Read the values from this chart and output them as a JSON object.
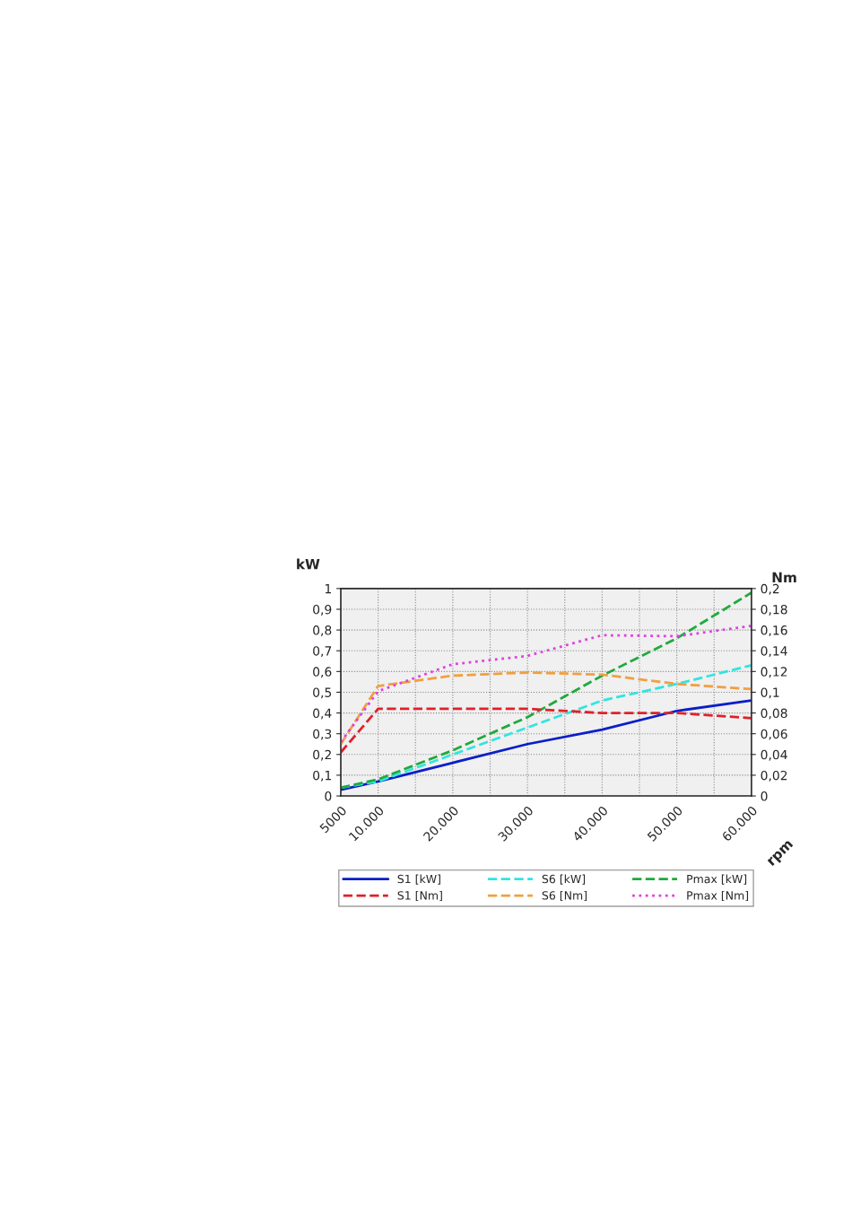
{
  "chart_data": {
    "type": "line",
    "xlabel": "rpm",
    "ylabel": "kW",
    "y2label": "Nm",
    "x": [
      5000,
      10000,
      20000,
      30000,
      40000,
      50000,
      60000
    ],
    "xlim": [
      5000,
      60000
    ],
    "xticks": [
      5000,
      {
        "value": 10000,
        "label": "10.000"
      },
      {
        "value": 20000,
        "label": "20.000"
      },
      {
        "value": 30000,
        "label": "30.000"
      },
      {
        "value": 40000,
        "label": "40.000"
      },
      {
        "value": 50000,
        "label": "50.000"
      },
      {
        "value": 60000,
        "label": "60.000"
      }
    ],
    "ylim": [
      0,
      1
    ],
    "yticks": [
      0,
      {
        "value": 0.1,
        "label": "0,1"
      },
      {
        "value": 0.2,
        "label": "0,2"
      },
      {
        "value": 0.3,
        "label": "0,3"
      },
      {
        "value": 0.4,
        "label": "0,4"
      },
      {
        "value": 0.5,
        "label": "0,5"
      },
      {
        "value": 0.6,
        "label": "0,6"
      },
      {
        "value": 0.7,
        "label": "0,7"
      },
      {
        "value": 0.8,
        "label": "0,8"
      },
      {
        "value": 0.9,
        "label": "0,9"
      },
      1
    ],
    "y2lim": [
      0,
      0.2
    ],
    "y2ticks": [
      0,
      {
        "value": 0.02,
        "label": "0,02"
      },
      {
        "value": 0.04,
        "label": "0,04"
      },
      {
        "value": 0.06,
        "label": "0,06"
      },
      {
        "value": 0.08,
        "label": "0,08"
      },
      {
        "value": 0.1,
        "label": "0,1"
      },
      {
        "value": 0.12,
        "label": "0,12"
      },
      {
        "value": 0.14,
        "label": "0,14"
      },
      {
        "value": 0.16,
        "label": "0,16"
      },
      {
        "value": 0.18,
        "label": "0,18"
      },
      {
        "value": 0.2,
        "label": "0,2"
      }
    ],
    "grid": true,
    "legend": "bottom",
    "series": [
      {
        "name": "S1 [kW]",
        "color": "#0a1ec8",
        "line_style": "solid",
        "values": [
          0.03,
          0.07,
          0.16,
          0.25,
          0.32,
          0.41,
          0.46
        ]
      },
      {
        "name": "S6 [kW]",
        "color": "#2ee6e0",
        "line_style": "dashed",
        "values": [
          0.04,
          0.07,
          0.2,
          0.33,
          0.46,
          0.54,
          0.63
        ]
      },
      {
        "name": "Pmax [kW]",
        "color": "#1faa3c",
        "line_style": "dashed",
        "values": [
          0.04,
          0.08,
          0.22,
          0.38,
          0.58,
          0.76,
          0.98
        ]
      },
      {
        "name": "S1 [Nm]",
        "color": "#e0202a",
        "line_style": "dashed",
        "axis": "y2",
        "values": [
          0.042,
          0.084,
          0.084,
          0.084,
          0.08,
          0.08,
          0.075
        ]
      },
      {
        "name": "S6 [Nm]",
        "color": "#f0a040",
        "line_style": "dashed",
        "axis": "y2",
        "values": [
          0.05,
          0.106,
          0.116,
          0.119,
          0.117,
          0.108,
          0.103
        ]
      },
      {
        "name": "Pmax [Nm]",
        "color": "#e040e0",
        "line_style": "dotted",
        "axis": "y2",
        "values": [
          0.052,
          0.101,
          0.127,
          0.135,
          0.155,
          0.154,
          0.164
        ]
      }
    ]
  }
}
